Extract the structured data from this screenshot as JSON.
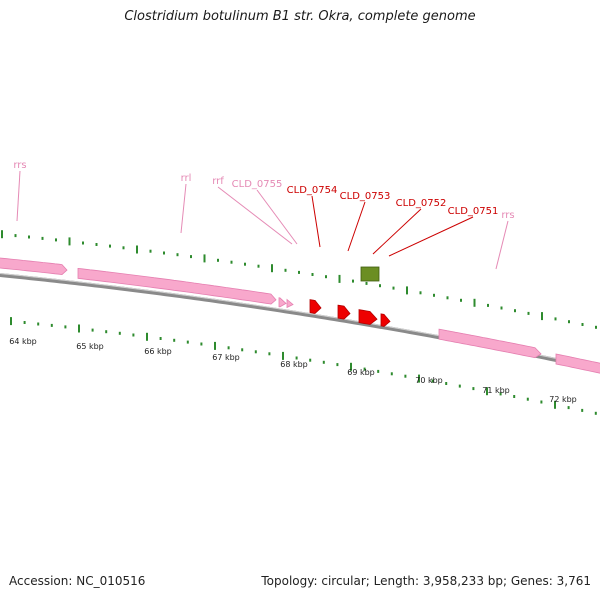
{
  "header": {
    "title": "Clostridium botulinum B1 str. Okra, complete genome"
  },
  "footer": {
    "accession": "Accession: NC_010516",
    "stats": "Topology: circular; Length: 3,958,233 bp; Genes: 3,761"
  },
  "colors": {
    "rna_gene": "#f8a8cc",
    "rna_gene_edge": "#e57fb0",
    "cds": "#ee0000",
    "selected_feature": "#6b8e23",
    "backbone": "#8a8a8a",
    "ticks": "#2e8b2e",
    "rna_label": "#e58ab5",
    "cds_label": "#cc0000"
  },
  "scale": {
    "unit": "kbp",
    "labels": [
      "64 kbp",
      "65 kbp",
      "66 kbp",
      "67 kbp",
      "68 kbp",
      "69 kbp",
      "70 kbp",
      "71 kbp",
      "72 kbp"
    ]
  },
  "feature_labels": [
    {
      "text": "rrs",
      "type": "rna"
    },
    {
      "text": "rrl",
      "type": "rna"
    },
    {
      "text": "rrf",
      "type": "rna"
    },
    {
      "text": "CLD_0755",
      "type": "rna"
    },
    {
      "text": "CLD_0754",
      "type": "cds"
    },
    {
      "text": "CLD_0753",
      "type": "cds"
    },
    {
      "text": "CLD_0752",
      "type": "cds"
    },
    {
      "text": "CLD_0751",
      "type": "cds"
    },
    {
      "text": "rrs",
      "type": "rna"
    }
  ]
}
